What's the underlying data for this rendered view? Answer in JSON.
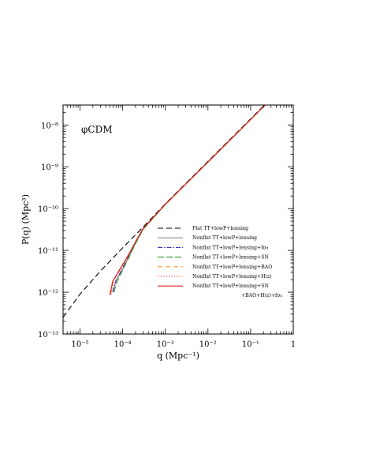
{
  "chart_data": {
    "type": "line",
    "annotation": "φCDM",
    "xlabel": "q (Mpc⁻¹)",
    "ylabel": "P(q) (Mpc³)",
    "xscale": "log",
    "yscale": "log",
    "xlim": [
      4e-06,
      1.0
    ],
    "ylim": [
      1e-13,
      3e-08
    ],
    "grid": false,
    "legend_position": "bottom-right",
    "x_tick_labels": [
      {
        "value": 1e-05,
        "label": "10⁻⁵"
      },
      {
        "value": 0.0001,
        "label": "10⁻⁴"
      },
      {
        "value": 0.001,
        "label": "10⁻³"
      },
      {
        "value": 0.01,
        "label": "10⁻²"
      },
      {
        "value": 0.1,
        "label": "10⁻¹"
      },
      {
        "value": 1,
        "label": "1"
      }
    ],
    "y_tick_labels": [
      {
        "value": 1e-13,
        "label": "10⁻¹³"
      },
      {
        "value": 1e-12,
        "label": "10⁻¹²"
      },
      {
        "value": 1e-11,
        "label": "10⁻¹¹"
      },
      {
        "value": 1e-10,
        "label": "10⁻¹⁰"
      },
      {
        "value": 1e-09,
        "label": "10⁻⁹"
      },
      {
        "value": 1e-08,
        "label": "10⁻⁸"
      }
    ],
    "series": [
      {
        "name": "Flat TT+lowP+lensing",
        "color": "#000000",
        "dash": "7,4",
        "x": [
          4e-06,
          1e-05,
          3e-05,
          0.0001,
          0.0003,
          0.001,
          0.01,
          0.1,
          1.0
        ],
        "y": [
          2.5e-13,
          9e-13,
          3.2e-12,
          1.15e-11,
          3.6e-11,
          1.3e-10,
          1.35e-09,
          1.4e-08,
          1.45e-07
        ]
      },
      {
        "name": "Nonflat TT+lowP+lensing",
        "color": "#8c8c8c",
        "dash": "",
        "x": [
          6e-05,
          7e-05,
          0.0001,
          0.00014,
          0.0002,
          0.0003,
          0.001,
          0.01,
          0.1,
          1.0
        ],
        "y": [
          1.05e-12,
          1.9e-12,
          3.6e-12,
          7e-12,
          1.5e-11,
          3.2e-11,
          1.25e-10,
          1.3e-09,
          1.35e-08,
          1.4e-07
        ]
      },
      {
        "name": "Nonflat TT+lowP+lensing+fσ₈",
        "color": "#3838b0",
        "dash": "6,2,1.5,2",
        "x": [
          5.8e-05,
          6.8e-05,
          0.0001,
          0.00014,
          0.0002,
          0.0003,
          0.001,
          0.01,
          0.1,
          1.0
        ],
        "y": [
          1e-12,
          1.8e-12,
          3.8e-12,
          7.4e-12,
          1.55e-11,
          3.25e-11,
          1.26e-10,
          1.3e-09,
          1.35e-08,
          1.4e-07
        ]
      },
      {
        "name": "Nonflat TT+lowP+lensing+SN",
        "color": "#2f9a2f",
        "dash": "8,3",
        "x": [
          6.2e-05,
          7.2e-05,
          0.0001,
          0.00014,
          0.0002,
          0.0003,
          0.001,
          0.01,
          0.1,
          1.0
        ],
        "y": [
          1e-12,
          1.7e-12,
          3.4e-12,
          6.8e-12,
          1.45e-11,
          3.15e-11,
          1.25e-10,
          1.3e-09,
          1.35e-08,
          1.4e-07
        ]
      },
      {
        "name": "Nonflat TT+lowP+lensing+BAO",
        "color": "#f0a030",
        "dash": "6,4",
        "x": [
          5.2e-05,
          6e-05,
          0.0001,
          0.00014,
          0.0002,
          0.0003,
          0.001,
          0.01,
          0.1,
          1.0
        ],
        "y": [
          9e-13,
          1.9e-12,
          4.4e-12,
          8e-12,
          1.6e-11,
          3.3e-11,
          1.26e-10,
          1.3e-09,
          1.35e-08,
          1.4e-07
        ]
      },
      {
        "name": "Nonflat TT+lowP+lensing+H(z)",
        "color": "#ff4040",
        "dash": "1.5,2",
        "x": [
          5.3e-05,
          6.1e-05,
          0.0001,
          0.00014,
          0.0002,
          0.0003,
          0.001,
          0.01,
          0.1,
          1.0
        ],
        "y": [
          9e-13,
          1.85e-12,
          4.3e-12,
          7.9e-12,
          1.6e-11,
          3.3e-11,
          1.26e-10,
          1.3e-09,
          1.35e-08,
          1.4e-07
        ]
      },
      {
        "name": "Nonflat TT+lowP+lensing+SN",
        "name_line2": "+BAO+H(z)+fσ₈",
        "color": "#d81e1e",
        "dash": "",
        "x": [
          5e-05,
          5.8e-05,
          0.0001,
          0.00014,
          0.0002,
          0.0003,
          0.001,
          0.01,
          0.1,
          1.0
        ],
        "y": [
          8.5e-13,
          1.8e-12,
          4.6e-12,
          8.2e-12,
          1.62e-11,
          3.35e-11,
          1.27e-10,
          1.3e-09,
          1.35e-08,
          1.4e-07
        ]
      }
    ]
  }
}
